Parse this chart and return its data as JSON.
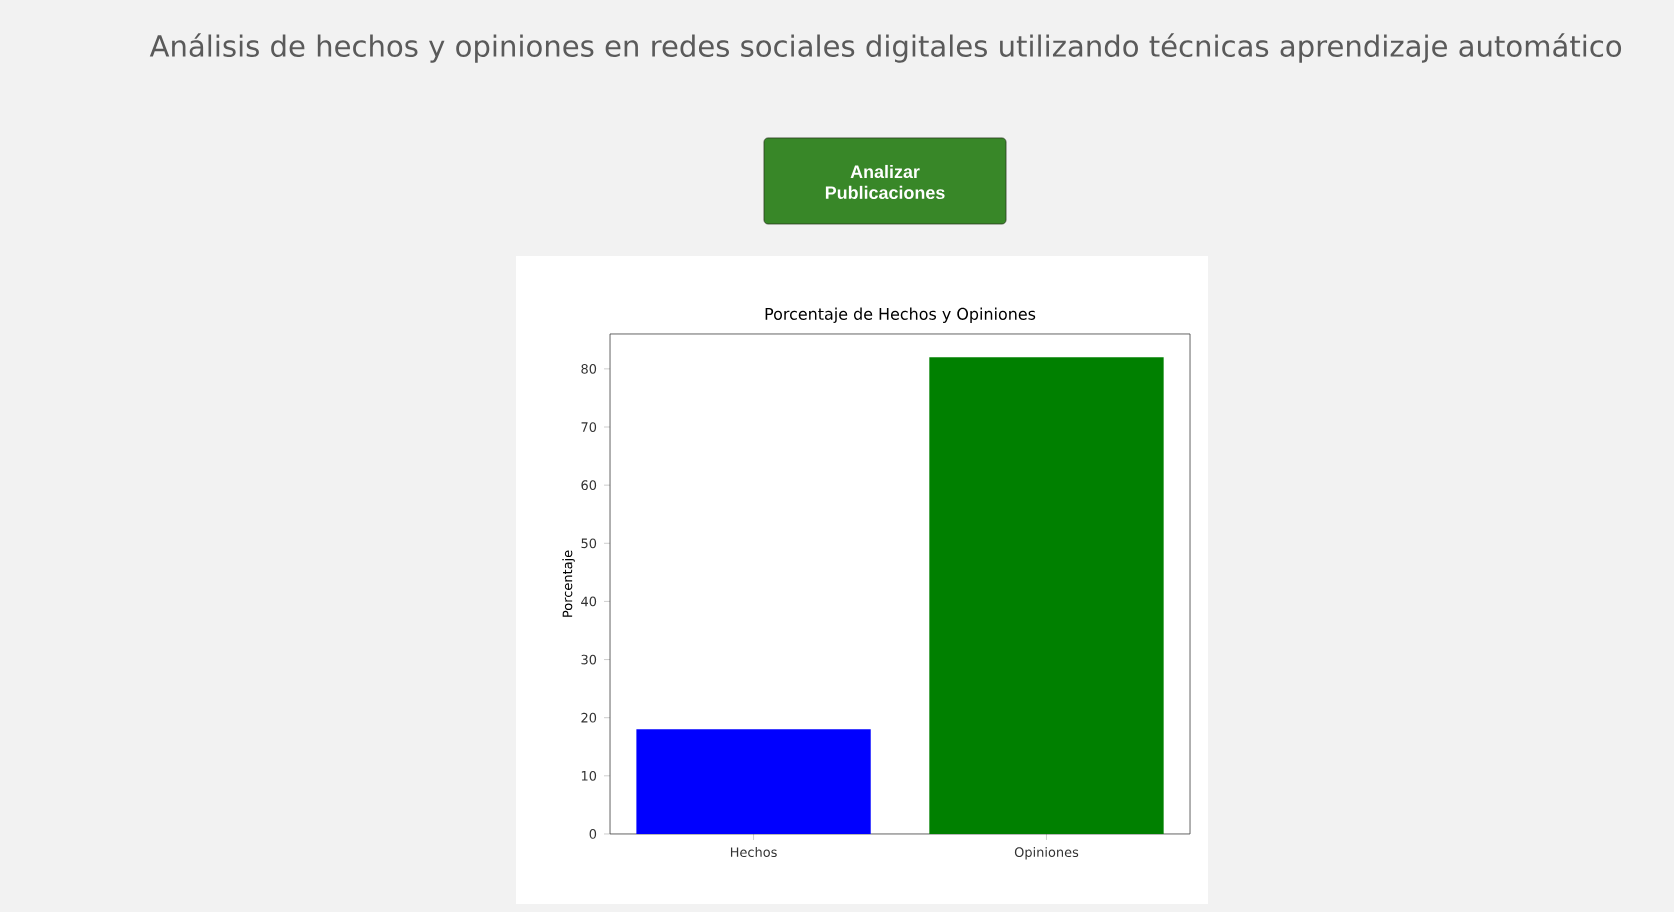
{
  "chart_data": {
    "type": "bar",
    "title": "Análisis de hechos y opiniones en redes sociales digitales utilizando técnicas aprendizaje automático",
    "subtitle": "Porcentaje de Hechos y Opiniones",
    "annotations": [
      "Analizar Publicaciones"
    ],
    "categories": [
      "Hechos",
      "Opiniones"
    ],
    "values": [
      18,
      82
    ],
    "colors": [
      "#0000ff",
      "#008000"
    ],
    "ylabel": "Porcentaje",
    "ylim": [
      0,
      86
    ],
    "yticks": [
      0,
      10,
      20,
      30,
      40,
      50,
      60,
      70,
      80
    ]
  }
}
